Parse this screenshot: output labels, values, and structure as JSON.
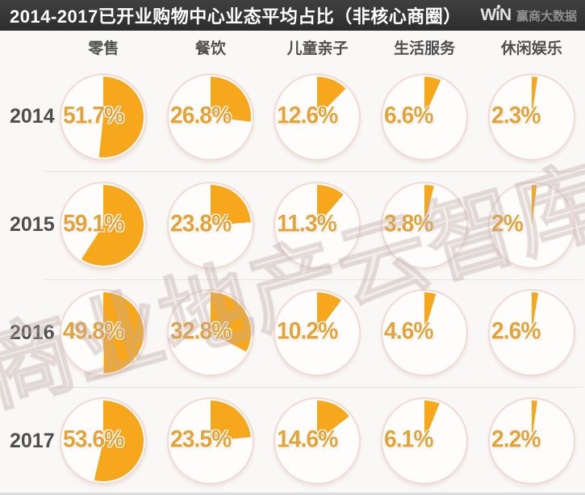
{
  "header": {
    "title": "2014-2017已开业购物中心业态平均占比（非核心商圈）",
    "logo": {
      "win": "WiN",
      "brand": "赢商大数据"
    }
  },
  "columns": [
    "零售",
    "餐饮",
    "儿童亲子",
    "生活服务",
    "休闲娱乐"
  ],
  "chart_data": {
    "type": "pie",
    "title": "2014-2017已开业购物中心业态平均占比（非核心商圈）",
    "unit": "%",
    "categories": [
      "零售",
      "餐饮",
      "儿童亲子",
      "生活服务",
      "休闲娱乐"
    ],
    "rows": [
      {
        "year": "2014",
        "values": [
          51.7,
          26.8,
          12.6,
          6.6,
          2.3
        ]
      },
      {
        "year": "2015",
        "values": [
          59.1,
          23.8,
          11.3,
          3.8,
          2
        ]
      },
      {
        "year": "2016",
        "values": [
          49.8,
          32.8,
          10.2,
          4.6,
          2.6
        ]
      },
      {
        "year": "2017",
        "values": [
          53.6,
          23.5,
          14.6,
          6.1,
          2.2
        ]
      }
    ],
    "pie_start_angle_deg": 0,
    "direction": "clockwise",
    "legend_position": "none",
    "grid": false
  },
  "watermark": "商业地产云智库",
  "colors": {
    "pie_fill": "#F7A71C",
    "percent_text": "#E3A33A",
    "circle_border": "#F1DAD3",
    "title_bar_bg": "#333333",
    "title_text": "#FFFFFF",
    "background": "#FAF8F6"
  }
}
